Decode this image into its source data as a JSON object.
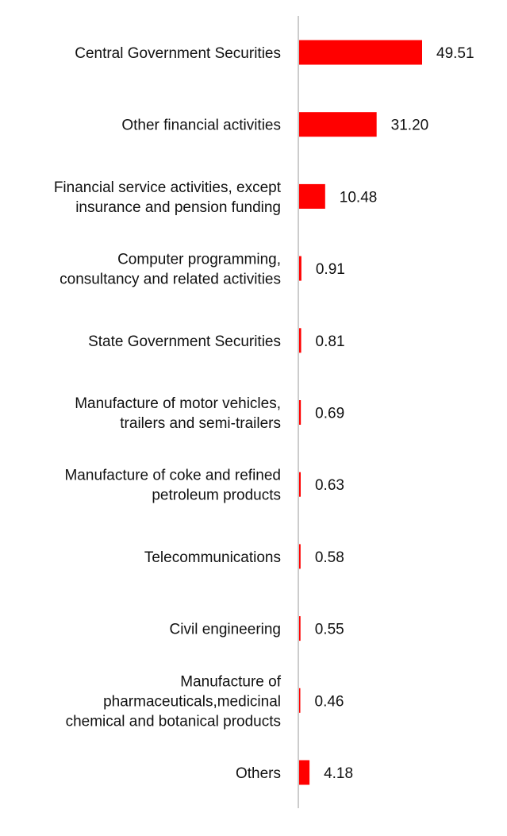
{
  "chart_data": {
    "type": "bar",
    "orientation": "horizontal",
    "title": "",
    "xlabel": "",
    "ylabel": "",
    "grid": false,
    "legend": "none",
    "xlim": [
      0,
      50
    ],
    "bar_color": "#ff0000",
    "axis_color": "#cccccc",
    "categories": [
      "Central Government Securities",
      "Other financial activities",
      "Financial service activities, except insurance and pension funding",
      "Computer programming, consultancy and related activities",
      "State Government Securities",
      "Manufacture of motor vehicles, trailers and semi-trailers",
      "Manufacture of coke and refined petroleum products",
      "Telecommunications",
      "Civil engineering",
      "Manufacture of pharmaceuticals,medicinal chemical and botanical products",
      "Others"
    ],
    "category_lines": [
      [
        "Central Government Securities"
      ],
      [
        "Other financial activities"
      ],
      [
        "Financial service activities, except",
        "insurance and pension funding"
      ],
      [
        "Computer programming,",
        "consultancy and related activities"
      ],
      [
        "State Government Securities"
      ],
      [
        "Manufacture of motor vehicles,",
        "trailers and semi-trailers"
      ],
      [
        "Manufacture of coke and refined",
        "petroleum products"
      ],
      [
        "Telecommunications"
      ],
      [
        "Civil engineering"
      ],
      [
        "Manufacture of",
        "pharmaceuticals,medicinal",
        "chemical and botanical products"
      ],
      [
        "Others"
      ]
    ],
    "values": [
      49.51,
      31.2,
      10.48,
      0.91,
      0.81,
      0.69,
      0.63,
      0.58,
      0.55,
      0.46,
      4.18
    ],
    "value_labels": [
      "49.51",
      "31.20",
      "10.48",
      "0.91",
      "0.81",
      "0.69",
      "0.63",
      "0.58",
      "0.55",
      "0.46",
      "4.18"
    ]
  }
}
